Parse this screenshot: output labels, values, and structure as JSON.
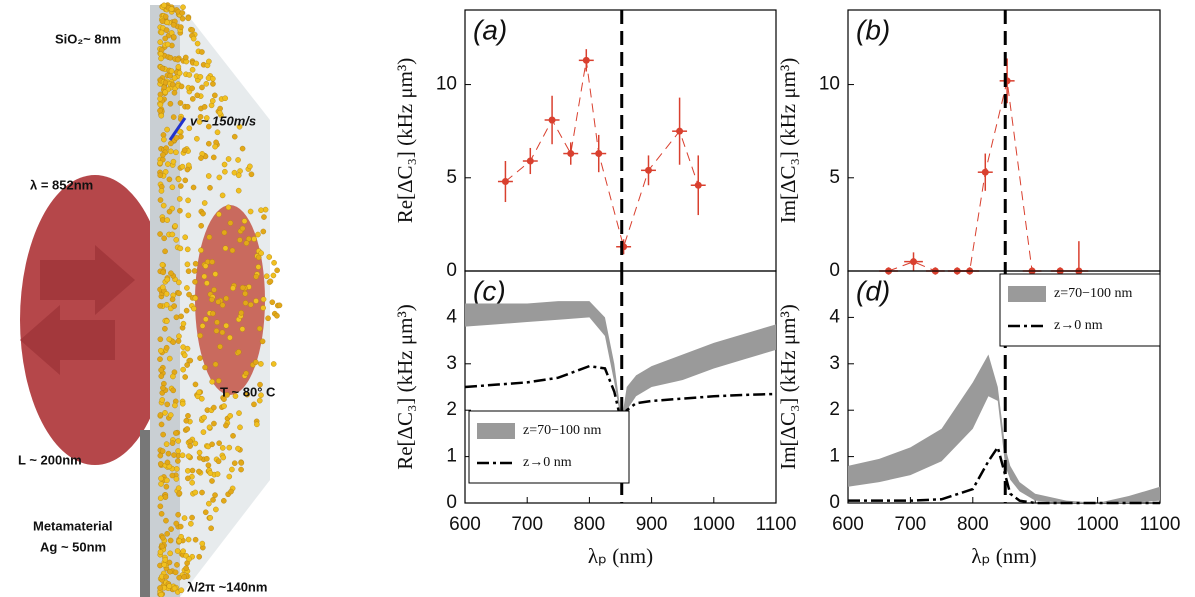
{
  "diagram": {
    "labels": [
      "SiO₂~ 8nm",
      "v ~ 150m/s",
      "λ =  852nm",
      "T ~ 80° C",
      "L ~ 200nm",
      "Metamaterial",
      "Ag ~ 50nm",
      "λ/2π ~140nm"
    ]
  },
  "chart_data": [
    {
      "type": "errorbar",
      "title": "(a)",
      "ylabel": "Re[ΔC₃] (kHz μm³)",
      "xlim": [
        600,
        1100
      ],
      "ylim": [
        0,
        14
      ],
      "yticks": [
        0,
        5,
        10
      ],
      "vline": 852,
      "series": [
        {
          "color": "#d9402f",
          "x": [
            665,
            705,
            740,
            770,
            795,
            815,
            855,
            895,
            945,
            975
          ],
          "values": [
            4.8,
            5.9,
            8.1,
            6.3,
            11.3,
            6.3,
            1.3,
            5.4,
            7.5,
            4.6
          ],
          "xerr": [
            12,
            12,
            12,
            12,
            12,
            12,
            12,
            12,
            12,
            12
          ],
          "yerr": [
            1.1,
            0.7,
            1.3,
            0.6,
            0.6,
            1.0,
            0.4,
            0.8,
            1.8,
            1.6
          ]
        }
      ]
    },
    {
      "type": "errorbar",
      "title": "(b)",
      "ylabel": "Im[ΔC₃] (kHz μm³)",
      "xlim": [
        600,
        1100
      ],
      "ylim": [
        0,
        14
      ],
      "yticks": [
        0,
        5,
        10
      ],
      "vline": 852,
      "series": [
        {
          "color": "#d9402f",
          "x": [
            665,
            705,
            740,
            775,
            795,
            820,
            855,
            895,
            940,
            970
          ],
          "values": [
            0,
            0.5,
            0,
            0,
            0,
            5.3,
            10.2,
            0,
            0,
            0
          ],
          "xerr": [
            15,
            15,
            15,
            15,
            15,
            12,
            12,
            15,
            15,
            15
          ],
          "yerr": [
            0.2,
            0.5,
            0.2,
            0.2,
            0.2,
            1.0,
            1.2,
            0.2,
            0.2,
            1.6
          ]
        }
      ]
    },
    {
      "type": "band",
      "title": "(c)",
      "ylabel": "Re[ΔC₃] (kHz μm³)",
      "xlabel": "λₚ (nm)",
      "xlim": [
        600,
        1100
      ],
      "ylim": [
        0,
        5
      ],
      "xticks": [
        600,
        700,
        800,
        900,
        1000,
        1100
      ],
      "yticks": [
        0,
        1,
        2,
        3,
        4
      ],
      "vline": 852,
      "legend": "lower left",
      "x": [
        600,
        650,
        700,
        750,
        800,
        825,
        840,
        852,
        860,
        875,
        900,
        950,
        1000,
        1050,
        1100
      ],
      "series": [
        {
          "name": "z=70−100 nm",
          "color": "#9a9a9a",
          "high": [
            4.3,
            4.3,
            4.3,
            4.35,
            4.35,
            4.0,
            3.0,
            1.8,
            2.5,
            2.75,
            2.95,
            3.2,
            3.45,
            3.65,
            3.85
          ],
          "low": [
            3.8,
            3.85,
            3.9,
            3.95,
            4.0,
            3.6,
            2.6,
            1.7,
            2.0,
            2.3,
            2.5,
            2.65,
            2.9,
            3.1,
            3.3
          ]
        },
        {
          "name": "z→0 nm",
          "color": "#000000",
          "values": [
            2.5,
            2.55,
            2.6,
            2.7,
            2.95,
            2.9,
            2.4,
            1.7,
            2.0,
            2.15,
            2.2,
            2.25,
            2.3,
            2.33,
            2.35
          ]
        }
      ]
    },
    {
      "type": "band",
      "title": "(d)",
      "ylabel": "Im[ΔC₃] (kHz μm³)",
      "xlabel": "λₚ (nm)",
      "xlim": [
        600,
        1100
      ],
      "ylim": [
        0,
        5
      ],
      "xticks": [
        600,
        700,
        800,
        900,
        1000,
        1100
      ],
      "yticks": [
        0,
        1,
        2,
        3,
        4
      ],
      "vline": 852,
      "legend": "upper right",
      "x": [
        600,
        650,
        700,
        750,
        800,
        825,
        840,
        852,
        860,
        875,
        900,
        950,
        1000,
        1050,
        1100
      ],
      "series": [
        {
          "name": "z=70−100 nm",
          "color": "#9a9a9a",
          "high": [
            0.8,
            0.95,
            1.2,
            1.6,
            2.6,
            3.2,
            2.5,
            1.2,
            0.8,
            0.45,
            0.2,
            0.05,
            0.0,
            0.15,
            0.35
          ],
          "low": [
            0.35,
            0.45,
            0.6,
            0.9,
            1.6,
            2.3,
            2.2,
            0.8,
            0.5,
            0.25,
            0.05,
            0.0,
            0.0,
            0.0,
            0.05
          ]
        },
        {
          "name": "z→0 nm",
          "color": "#000000",
          "values": [
            0.05,
            0.05,
            0.05,
            0.08,
            0.3,
            0.9,
            1.2,
            0.6,
            0.2,
            0.05,
            0.0,
            0.0,
            0.0,
            0.0,
            0.0
          ]
        }
      ]
    }
  ]
}
